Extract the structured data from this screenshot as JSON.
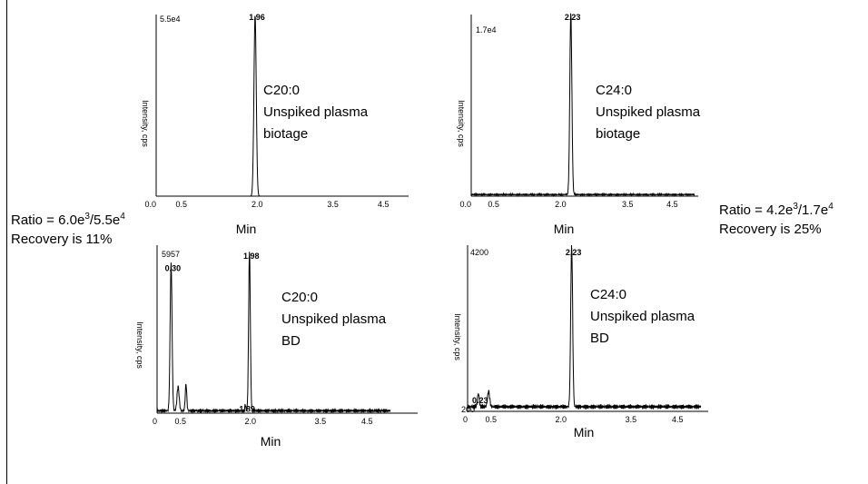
{
  "chart_data": [
    {
      "type": "line",
      "ymax_label": "5.5e4",
      "ylabel": "Intensity, cps",
      "xlabel": "Min",
      "x_ticks": [
        "0.0",
        "0.5",
        "2.0",
        "3.5",
        "4.5"
      ],
      "xlim": [
        0,
        5.0
      ],
      "ylim": [
        0,
        55000
      ],
      "peaks": [
        {
          "label": "1.96",
          "x": 1.96,
          "y": 55000,
          "width": 0.05
        }
      ],
      "noise": {
        "level": 0,
        "amp": 0
      },
      "annotation": [
        "C20:0",
        "Unspiked plasma",
        "biotage"
      ]
    },
    {
      "type": "line",
      "ymax_label": "1.7e4",
      "ylabel": "Intensity, cps",
      "xlabel": "Min",
      "x_ticks": [
        "0.0",
        "0.5",
        "2.0",
        "3.5",
        "4.5"
      ],
      "xlim": [
        0,
        5.0
      ],
      "ylim": [
        0,
        17000
      ],
      "peaks": [
        {
          "label": "2.23",
          "x": 2.23,
          "y": 17000,
          "width": 0.05
        }
      ],
      "noise": {
        "level": 150,
        "amp": 90
      },
      "annotation": [
        "C24:0",
        "Unspiked plasma",
        "biotage"
      ]
    },
    {
      "type": "line",
      "ymax_label": "5957",
      "ylabel": "Intensity, cps",
      "xlabel": "Min",
      "x_ticks": [
        "0",
        "0.5",
        "2.0",
        "3.5",
        "4.5"
      ],
      "xlim": [
        0,
        5.0
      ],
      "ylim": [
        0,
        5957
      ],
      "peaks": [
        {
          "label": "0.30",
          "x": 0.3,
          "y": 5500,
          "width": 0.045
        },
        {
          "label": "",
          "x": 0.45,
          "y": 900,
          "width": 0.05
        },
        {
          "label": "",
          "x": 0.62,
          "y": 1000,
          "width": 0.035
        },
        {
          "label": "1.98",
          "x": 1.98,
          "y": 5957,
          "width": 0.04
        },
        {
          "label": "1.89",
          "x": 1.89,
          "y": 250,
          "width": 0.02
        }
      ],
      "noise": {
        "level": 90,
        "amp": 80
      },
      "annotation": [
        "C20:0",
        "Unspiked plasma",
        "BD"
      ]
    },
    {
      "type": "line",
      "ymax_label": "4200",
      "ymin_label": "200",
      "ylabel": "Intensity, cps",
      "xlabel": "Min",
      "x_ticks": [
        "0",
        "0.5",
        "2.0",
        "3.5",
        "4.5"
      ],
      "xlim": [
        0,
        5.0
      ],
      "ylim": [
        0,
        4200
      ],
      "peaks": [
        {
          "label": "0.23",
          "x": 0.23,
          "y": 350,
          "width": 0.04
        },
        {
          "label": "",
          "x": 0.45,
          "y": 400,
          "width": 0.05
        },
        {
          "label": "2.23",
          "x": 2.23,
          "y": 4200,
          "width": 0.045
        }
      ],
      "noise": {
        "level": 120,
        "amp": 70
      },
      "annotation": [
        "C24:0",
        "Unspiked plasma",
        "BD"
      ]
    }
  ],
  "notes": {
    "left": {
      "ratio_prefix": "Ratio = 6.0e",
      "exp1": "3",
      "mid": "/5.5e",
      "exp2": "4",
      "recovery": "Recovery is 11%"
    },
    "right": {
      "ratio_prefix": "Ratio = 4.2e",
      "exp1": "3",
      "mid": "/1.7e",
      "exp2": "4",
      "recovery": "Recovery is 25%"
    }
  }
}
